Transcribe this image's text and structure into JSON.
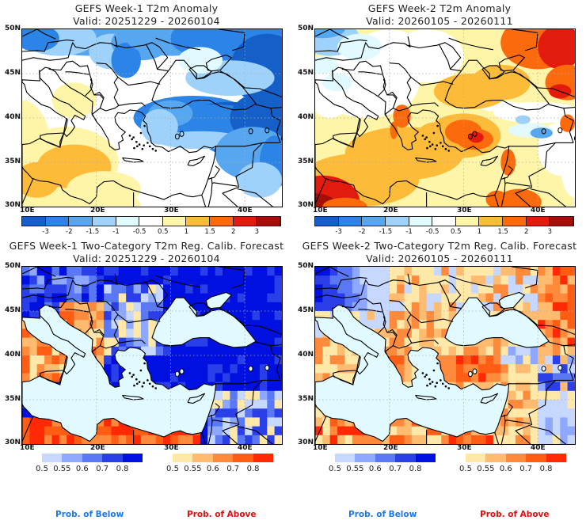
{
  "panels": [
    {
      "title": "GEFS Week-1 T2m Anomaly",
      "valid": "Valid: 20251229 - 20260104",
      "kind": "anomaly",
      "scenario": "w1a"
    },
    {
      "title": "GEFS Week-2 T2m Anomaly",
      "valid": "Valid: 20260105 - 20260111",
      "kind": "anomaly",
      "scenario": "w2a"
    },
    {
      "title": "GEFS Week-1 Two-Category T2m Reg. Calib. Forecast",
      "valid": "Valid: 20251229 - 20260104",
      "kind": "prob",
      "scenario": "w1p"
    },
    {
      "title": "GEFS Week-2 Two-Category T2m Reg. Calib. Forecast",
      "valid": "Valid: 20260105 - 20260111",
      "kind": "prob",
      "scenario": "w2p"
    }
  ],
  "axes": {
    "lat_labels": [
      "50N",
      "45N",
      "40N",
      "35N",
      "30N"
    ],
    "lon_labels": [
      "10E",
      "20E",
      "30E",
      "40E"
    ]
  },
  "anomaly_colorbar": {
    "colors": [
      "#1560c8",
      "#2b84e6",
      "#57a6f0",
      "#9fd2fa",
      "#e0faff",
      "#ffffff",
      "#fff5a8",
      "#fdbb3a",
      "#fb6a0c",
      "#e31a0e",
      "#a50f0a"
    ],
    "labels": [
      "-3",
      "-2",
      "-1.5",
      "-1",
      "-0.5",
      "0.5",
      "1",
      "1.5",
      "2",
      "3"
    ]
  },
  "prob_below_colorbar": {
    "colors": [
      "#c6d8ff",
      "#8ea8ff",
      "#5a78f5",
      "#2a3fe8",
      "#0010e0"
    ],
    "labels": [
      "0.5",
      "0.55",
      "0.6",
      "0.7",
      "0.8"
    ]
  },
  "prob_above_colorbar": {
    "colors": [
      "#ffe8a8",
      "#ffbb70",
      "#ff8a3c",
      "#ff5c14",
      "#ff2a05"
    ],
    "labels": [
      "0.5",
      "0.55",
      "0.6",
      "0.7",
      "0.8"
    ]
  },
  "legend": {
    "below_label": "Prob. of Below",
    "above_label": "Prob. of Above",
    "below_color": "#1f77e8",
    "above_color": "#e01010"
  },
  "sea_color": "#e0faff"
}
